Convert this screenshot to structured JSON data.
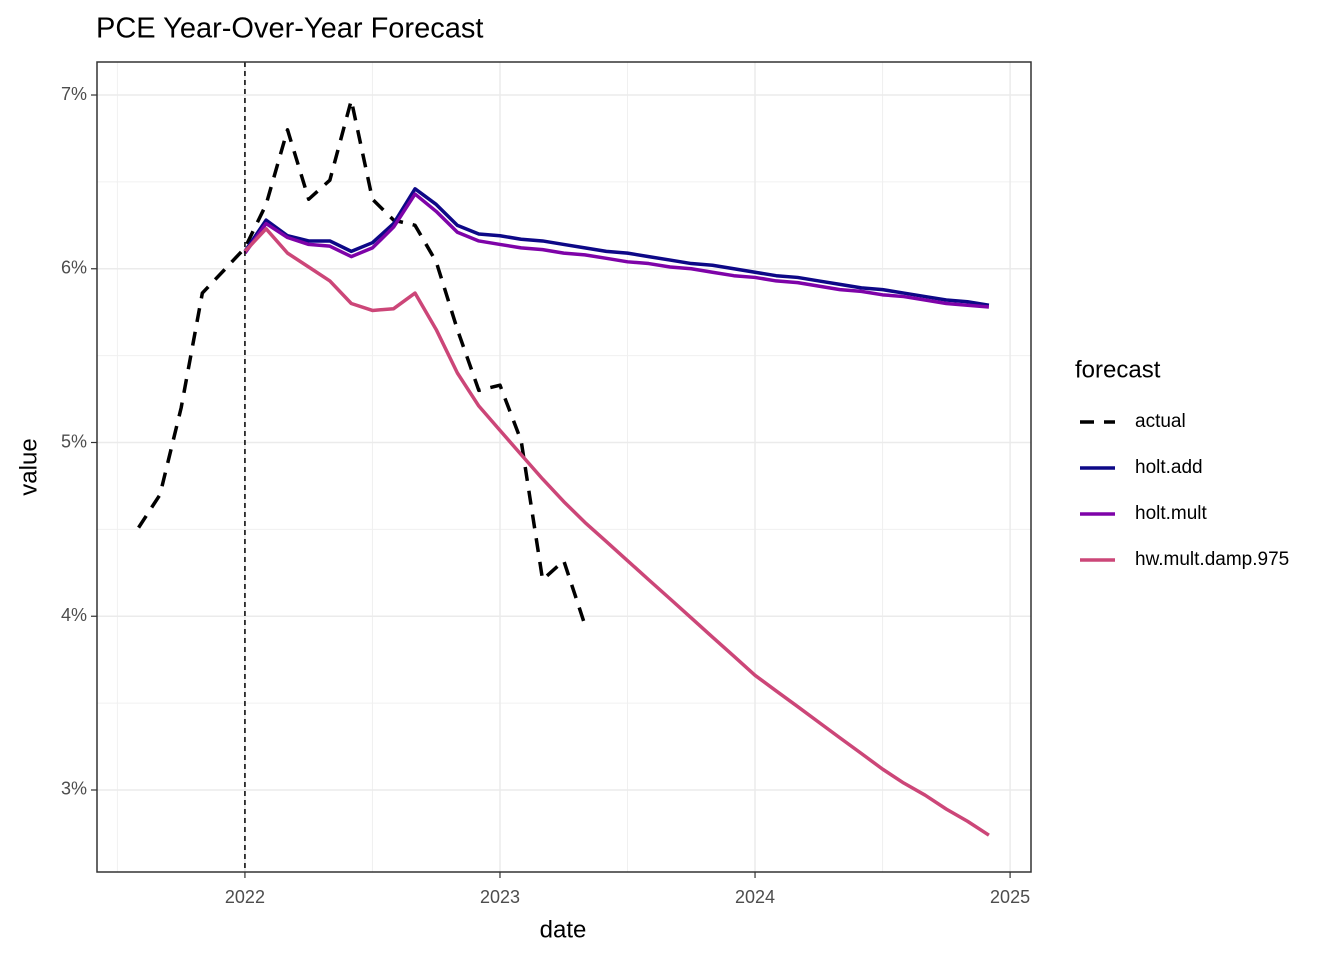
{
  "chart_data": {
    "type": "line",
    "title": "PCE Year-Over-Year Forecast",
    "x_label": "date",
    "y_label": "value",
    "legend_title": "forecast",
    "xlim": [
      2021.42,
      2025.082
    ],
    "ylim": [
      2.528,
      7.19
    ],
    "xticks": [
      2022,
      2023,
      2024,
      2025
    ],
    "yticks": [
      {
        "value": 3,
        "label": "3%"
      },
      {
        "value": 4,
        "label": "4%"
      },
      {
        "value": 5,
        "label": "5%"
      },
      {
        "value": 6,
        "label": "6%"
      },
      {
        "value": 7,
        "label": "7%"
      }
    ],
    "grid": true,
    "legend": "right",
    "vline": 2022,
    "series": [
      {
        "name": "actual",
        "color": "#000000",
        "dashed": true,
        "x": [
          2021.583,
          2021.667,
          2021.75,
          2021.833,
          2021.917,
          2022,
          2022.083,
          2022.167,
          2022.25,
          2022.333,
          2022.417,
          2022.5,
          2022.583,
          2022.667,
          2022.75,
          2022.833,
          2022.917,
          2023,
          2023.083,
          2023.167,
          2023.25,
          2023.333
        ],
        "values": [
          4.51,
          4.7,
          5.2,
          5.86,
          5.99,
          6.12,
          6.37,
          6.8,
          6.4,
          6.51,
          6.97,
          6.4,
          6.28,
          6.25,
          6.04,
          5.65,
          5.3,
          5.33,
          5.01,
          4.21,
          4.32,
          3.95
        ]
      },
      {
        "name": "holt.add",
        "color": "#0D0887",
        "dashed": false,
        "x": [
          2022,
          2022.083,
          2022.167,
          2022.25,
          2022.333,
          2022.417,
          2022.5,
          2022.583,
          2022.667,
          2022.75,
          2022.833,
          2022.917,
          2023,
          2023.083,
          2023.167,
          2023.25,
          2023.333,
          2023.417,
          2023.5,
          2023.583,
          2023.667,
          2023.75,
          2023.833,
          2023.917,
          2024,
          2024.083,
          2024.167,
          2024.25,
          2024.333,
          2024.417,
          2024.5,
          2024.583,
          2024.667,
          2024.75,
          2024.833,
          2024.917
        ],
        "values": [
          6.1,
          6.28,
          6.19,
          6.16,
          6.16,
          6.1,
          6.15,
          6.26,
          6.46,
          6.37,
          6.25,
          6.2,
          6.19,
          6.17,
          6.16,
          6.14,
          6.12,
          6.1,
          6.09,
          6.07,
          6.05,
          6.03,
          6.02,
          6.0,
          5.98,
          5.96,
          5.95,
          5.93,
          5.91,
          5.89,
          5.88,
          5.86,
          5.84,
          5.82,
          5.81,
          5.79
        ]
      },
      {
        "name": "holt.mult",
        "color": "#7E03A8",
        "dashed": false,
        "x": [
          2022,
          2022.083,
          2022.167,
          2022.25,
          2022.333,
          2022.417,
          2022.5,
          2022.583,
          2022.667,
          2022.75,
          2022.833,
          2022.917,
          2023,
          2023.083,
          2023.167,
          2023.25,
          2023.333,
          2023.417,
          2023.5,
          2023.583,
          2023.667,
          2023.75,
          2023.833,
          2023.917,
          2024,
          2024.083,
          2024.167,
          2024.25,
          2024.333,
          2024.417,
          2024.5,
          2024.583,
          2024.667,
          2024.75,
          2024.833,
          2024.917
        ],
        "values": [
          6.09,
          6.26,
          6.18,
          6.14,
          6.13,
          6.07,
          6.12,
          6.24,
          6.43,
          6.33,
          6.21,
          6.16,
          6.14,
          6.12,
          6.11,
          6.09,
          6.08,
          6.06,
          6.04,
          6.03,
          6.01,
          6.0,
          5.98,
          5.96,
          5.95,
          5.93,
          5.92,
          5.9,
          5.88,
          5.87,
          5.85,
          5.84,
          5.82,
          5.8,
          5.79,
          5.78
        ]
      },
      {
        "name": "hw.mult.damp.975",
        "color": "#CC4678",
        "dashed": false,
        "x": [
          2022,
          2022.083,
          2022.167,
          2022.25,
          2022.333,
          2022.417,
          2022.5,
          2022.583,
          2022.667,
          2022.75,
          2022.833,
          2022.917,
          2023,
          2023.083,
          2023.167,
          2023.25,
          2023.333,
          2023.417,
          2023.5,
          2023.583,
          2023.667,
          2023.75,
          2023.833,
          2023.917,
          2024,
          2024.083,
          2024.167,
          2024.25,
          2024.333,
          2024.417,
          2024.5,
          2024.583,
          2024.667,
          2024.75,
          2024.833,
          2024.917
        ],
        "values": [
          6.1,
          6.23,
          6.09,
          6.01,
          5.93,
          5.8,
          5.76,
          5.77,
          5.86,
          5.65,
          5.4,
          5.21,
          5.07,
          4.93,
          4.79,
          4.66,
          4.54,
          4.43,
          4.32,
          4.21,
          4.1,
          3.99,
          3.88,
          3.77,
          3.66,
          3.57,
          3.48,
          3.39,
          3.3,
          3.21,
          3.12,
          3.04,
          2.97,
          2.89,
          2.82,
          2.74
        ]
      }
    ]
  }
}
